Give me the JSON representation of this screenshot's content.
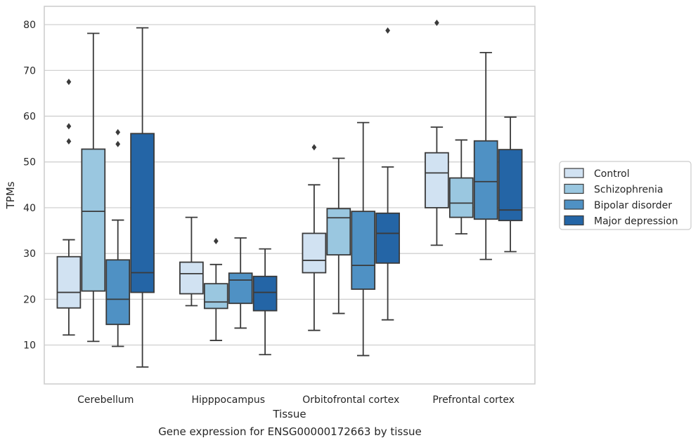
{
  "caption": "Gene expression for ENSG00000172663 by tissue",
  "chart_data": {
    "type": "box",
    "title": "",
    "xlabel": "Tissue",
    "ylabel": "TPMs",
    "ylim": [
      1.5,
      84
    ],
    "yticks": [
      10,
      20,
      30,
      40,
      50,
      60,
      70,
      80
    ],
    "grid": "horizontal",
    "legend_position": "outside-right",
    "categories": [
      "Cerebellum",
      "Hipppocampus",
      "Orbitofrontal cortex",
      "Prefrontal cortex"
    ],
    "series": [
      {
        "name": "Control",
        "color": "#d1e2f2",
        "boxes": [
          {
            "whisker_low": 12.2,
            "q1": 18.1,
            "median": 21.5,
            "q3": 29.3,
            "whisker_high": 33.0,
            "outliers": [
              67.5,
              57.8,
              54.5
            ]
          },
          {
            "whisker_low": 18.6,
            "q1": 21.2,
            "median": 25.6,
            "q3": 28.1,
            "whisker_high": 37.9,
            "outliers": []
          },
          {
            "whisker_low": 13.2,
            "q1": 25.8,
            "median": 28.5,
            "q3": 34.4,
            "whisker_high": 45.0,
            "outliers": [
              53.2
            ]
          },
          {
            "whisker_low": 31.8,
            "q1": 40.0,
            "median": 47.6,
            "q3": 52.0,
            "whisker_high": 57.6,
            "outliers": [
              80.4
            ]
          }
        ]
      },
      {
        "name": "Schizophrenia",
        "color": "#9ac7e0",
        "boxes": [
          {
            "whisker_low": 10.8,
            "q1": 21.8,
            "median": 39.2,
            "q3": 52.8,
            "whisker_high": 78.1,
            "outliers": []
          },
          {
            "whisker_low": 11.0,
            "q1": 18.0,
            "median": 19.4,
            "q3": 23.4,
            "whisker_high": 27.6,
            "outliers": [
              32.7
            ]
          },
          {
            "whisker_low": 16.9,
            "q1": 29.7,
            "median": 37.8,
            "q3": 39.8,
            "whisker_high": 50.8,
            "outliers": []
          },
          {
            "whisker_low": 34.3,
            "q1": 37.9,
            "median": 41.0,
            "q3": 46.5,
            "whisker_high": 54.8,
            "outliers": []
          }
        ]
      },
      {
        "name": "Bipolar disorder",
        "color": "#4f91c4",
        "boxes": [
          {
            "whisker_low": 9.7,
            "q1": 14.5,
            "median": 20.0,
            "q3": 28.6,
            "whisker_high": 37.3,
            "outliers": [
              56.5,
              53.9
            ]
          },
          {
            "whisker_low": 13.7,
            "q1": 19.1,
            "median": 24.2,
            "q3": 25.7,
            "whisker_high": 33.4,
            "outliers": []
          },
          {
            "whisker_low": 7.7,
            "q1": 22.2,
            "median": 27.4,
            "q3": 39.2,
            "whisker_high": 58.6,
            "outliers": []
          },
          {
            "whisker_low": 28.7,
            "q1": 37.5,
            "median": 45.7,
            "q3": 54.6,
            "whisker_high": 73.9,
            "outliers": []
          }
        ]
      },
      {
        "name": "Major depression",
        "color": "#2465a6",
        "boxes": [
          {
            "whisker_low": 5.2,
            "q1": 21.5,
            "median": 25.8,
            "q3": 56.2,
            "whisker_high": 79.3,
            "outliers": []
          },
          {
            "whisker_low": 7.9,
            "q1": 17.5,
            "median": 21.5,
            "q3": 25.0,
            "whisker_high": 31.0,
            "outliers": []
          },
          {
            "whisker_low": 15.5,
            "q1": 27.9,
            "median": 34.4,
            "q3": 38.8,
            "whisker_high": 48.9,
            "outliers": [
              78.7
            ]
          },
          {
            "whisker_low": 30.4,
            "q1": 37.2,
            "median": 39.5,
            "q3": 52.7,
            "whisker_high": 59.8,
            "outliers": []
          }
        ]
      }
    ]
  }
}
